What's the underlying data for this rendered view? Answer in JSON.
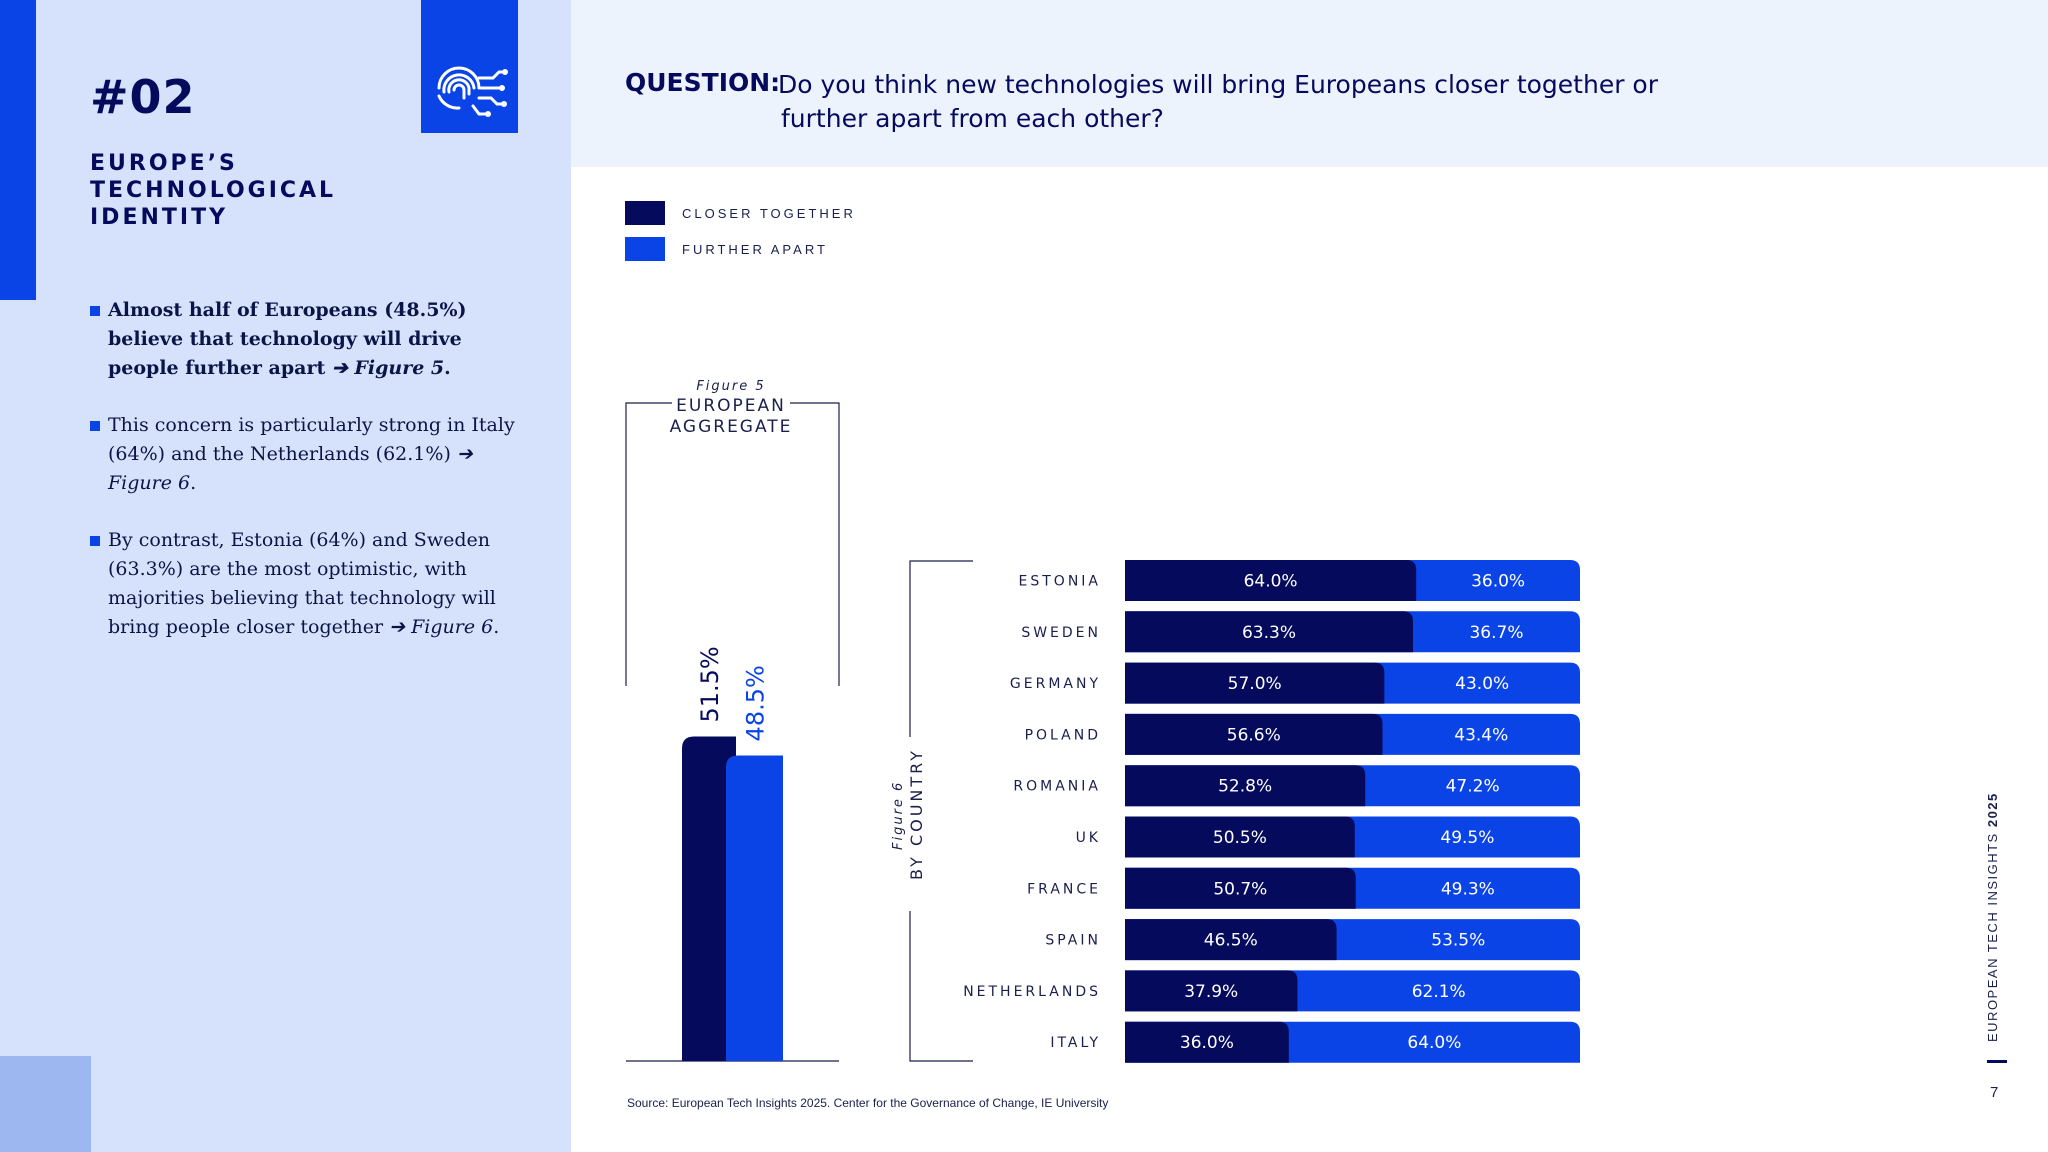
{
  "section": {
    "number": "#02",
    "title": "EUROPE’S TECHNOLOGICAL IDENTITY",
    "icon": "fingerprint-circuit-icon"
  },
  "bullets": [
    {
      "text": "Almost half of Europeans (48.5%) believe that technology will drive people further apart ",
      "ref": "➔ Figure 5",
      "end": "."
    },
    {
      "text": "This concern is particularly strong in Italy (64%) and the Netherlands (62.1%) ",
      "ref": "➔ Figure 6",
      "end": "."
    },
    {
      "text": "By contrast, Estonia (64%) and Sweden (63.3%) are the most optimistic, with majorities believing that technology will bring people closer together ",
      "ref": "➔ Figure 6",
      "end": "."
    }
  ],
  "question": {
    "label": "QUESTION:",
    "text": "Do you think new technologies will bring Europeans closer together or further apart from each other?"
  },
  "colors": {
    "closer": "#050a5c",
    "further": "#0a44e6"
  },
  "chart_data": [
    {
      "type": "bar",
      "figure_label": "Figure 5",
      "title": "EUROPEAN AGGREGATE",
      "categories": [
        "European aggregate"
      ],
      "series": [
        {
          "name": "CLOSER TOGETHER",
          "values": [
            51.5
          ]
        },
        {
          "name": "FURTHER APART",
          "values": [
            48.5
          ]
        }
      ],
      "data_labels": [
        "51.5%",
        "48.5%"
      ],
      "legend": "top-left"
    },
    {
      "type": "bar",
      "orientation": "horizontal-stacked",
      "figure_label": "Figure 6",
      "title": "BY COUNTRY",
      "categories": [
        "ESTONIA",
        "SWEDEN",
        "GERMANY",
        "POLAND",
        "ROMANIA",
        "UK",
        "FRANCE",
        "SPAIN",
        "NETHERLANDS",
        "ITALY"
      ],
      "series": [
        {
          "name": "CLOSER TOGETHER",
          "values": [
            64.0,
            63.3,
            57.0,
            56.6,
            52.8,
            50.5,
            50.7,
            46.5,
            37.9,
            36.0
          ]
        },
        {
          "name": "FURTHER APART",
          "values": [
            36.0,
            36.7,
            43.0,
            43.4,
            47.2,
            49.5,
            49.3,
            53.5,
            62.1,
            64.0
          ]
        }
      ],
      "labels_closer": [
        "64.0%",
        "63.3%",
        "57.0%",
        "56.6%",
        "52.8%",
        "50.5%",
        "50.7%",
        "46.5%",
        "37.9%",
        "36.0%"
      ],
      "labels_further": [
        "36.0%",
        "36.7%",
        "43.0%",
        "43.4%",
        "47.2%",
        "49.5%",
        "49.3%",
        "53.5%",
        "62.1%",
        "64.0%"
      ],
      "xlim": [
        0,
        100
      ]
    }
  ],
  "source": "Source: European Tech Insights 2025. Center for the Governance of Change, IE University",
  "brand": {
    "text": "EUROPEAN TECH INSIGHTS ",
    "year": "2025"
  },
  "page_number": "7"
}
